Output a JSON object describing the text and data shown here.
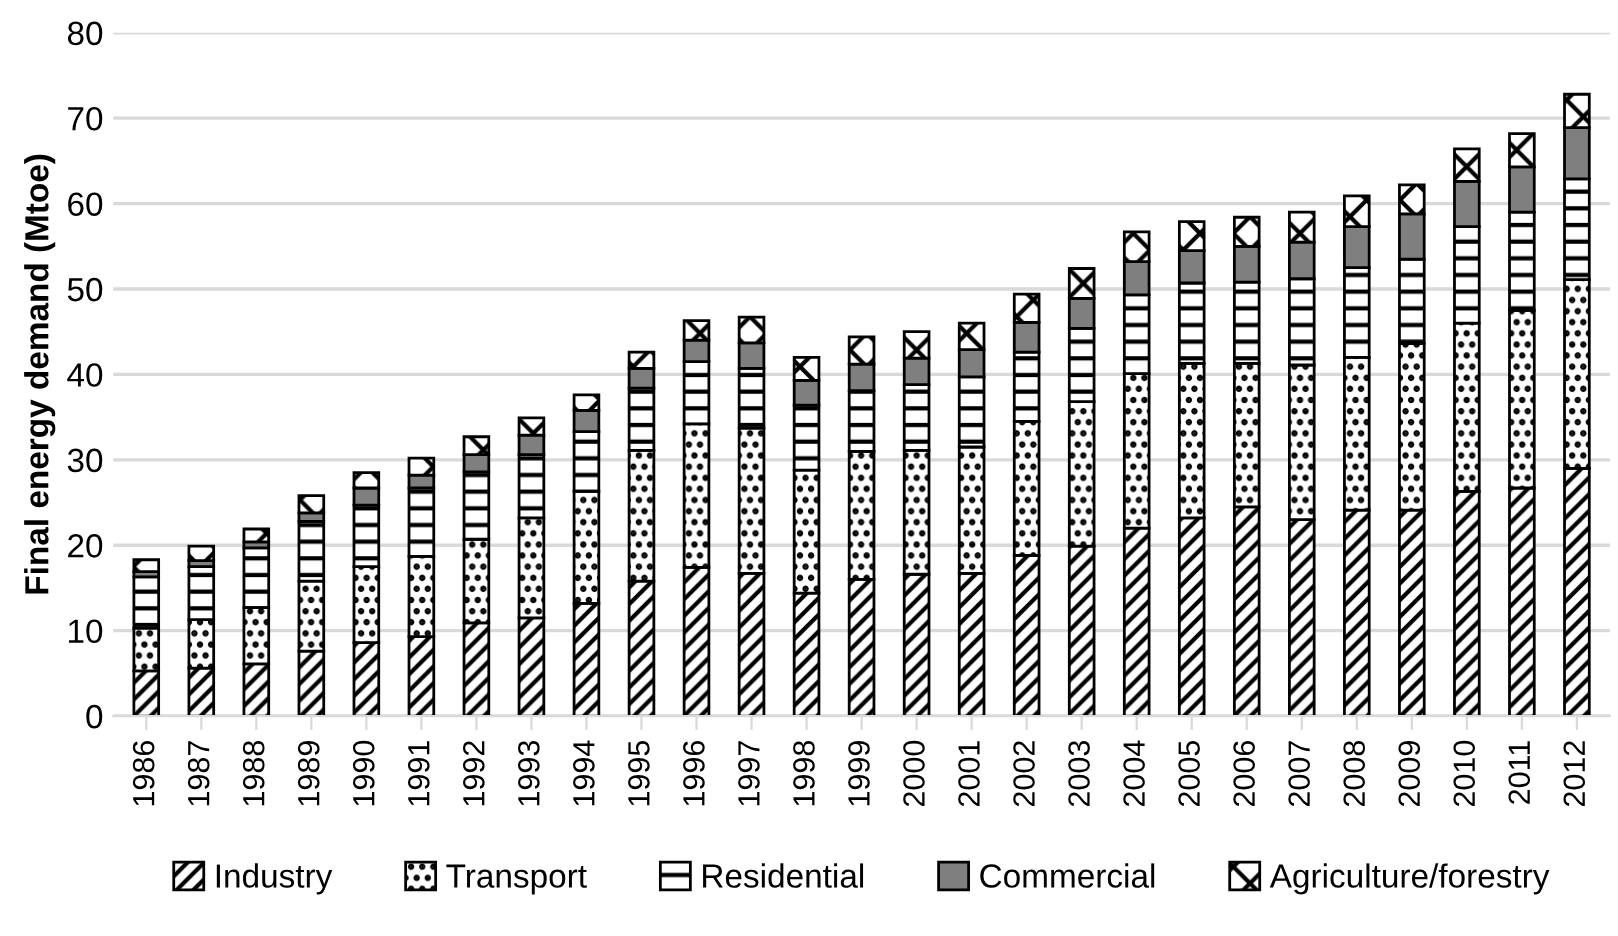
{
  "chart_data": {
    "type": "bar",
    "stacked": true,
    "ylabel": "Final energy demand (Mtoe)",
    "categories": [
      "1986",
      "1987",
      "1988",
      "1989",
      "1990",
      "1991",
      "1992",
      "1993",
      "1994",
      "1995",
      "1996",
      "1997",
      "1998",
      "1999",
      "2000",
      "2001",
      "2002",
      "2003",
      "2004",
      "2005",
      "2006",
      "2007",
      "2008",
      "2009",
      "2010",
      "2011",
      "2012"
    ],
    "series": [
      {
        "name": "Industry",
        "color": "#000000",
        "values": [
          5.3,
          5.6,
          6.1,
          7.6,
          8.6,
          9.3,
          10.9,
          11.5,
          13.2,
          15.8,
          17.4,
          16.7,
          14.4,
          16.0,
          16.6,
          16.7,
          18.8,
          19.9,
          22.0,
          23.2,
          24.5,
          23.0,
          24.1,
          24.1,
          26.3,
          26.7,
          29.0
        ]
      },
      {
        "name": "Transport",
        "color": "#000000",
        "values": [
          5.0,
          5.7,
          6.6,
          8.2,
          8.9,
          9.4,
          9.8,
          11.7,
          13.1,
          15.3,
          16.8,
          17.0,
          14.4,
          15.0,
          14.5,
          14.8,
          15.7,
          16.9,
          18.1,
          18.1,
          16.8,
          18.1,
          17.9,
          19.5,
          19.7,
          20.8,
          22.1
        ]
      },
      {
        "name": "Residential",
        "color": "#000000",
        "values": [
          6.0,
          6.2,
          7.0,
          7.0,
          7.2,
          8.0,
          7.9,
          7.4,
          7.0,
          7.3,
          7.3,
          7.0,
          7.6,
          7.1,
          7.7,
          8.2,
          8.1,
          8.6,
          9.2,
          9.4,
          9.5,
          10.1,
          10.5,
          9.9,
          11.3,
          11.5,
          11.8
        ]
      },
      {
        "name": "Commercial",
        "color": "#7f7f7f",
        "values": [
          0.6,
          0.7,
          0.7,
          1.0,
          2.0,
          1.5,
          2.0,
          2.3,
          2.5,
          2.3,
          2.5,
          3.0,
          2.9,
          3.1,
          3.1,
          3.2,
          3.5,
          3.5,
          3.9,
          3.8,
          4.2,
          4.3,
          4.8,
          5.3,
          5.3,
          5.3,
          6.0
        ]
      },
      {
        "name": "Agriculture/forestry",
        "color": "#000000",
        "values": [
          1.4,
          1.7,
          1.5,
          2.0,
          1.8,
          2.0,
          2.1,
          2.0,
          1.8,
          1.9,
          2.3,
          3.0,
          2.7,
          3.2,
          3.1,
          3.1,
          3.3,
          3.5,
          3.5,
          3.4,
          3.4,
          3.5,
          3.6,
          3.4,
          3.8,
          3.9,
          3.9
        ]
      }
    ],
    "ylim": [
      0,
      80
    ],
    "yticks": [
      0,
      10,
      20,
      30,
      40,
      50,
      60,
      70,
      80
    ],
    "grid": "y",
    "legend": "bottom"
  }
}
